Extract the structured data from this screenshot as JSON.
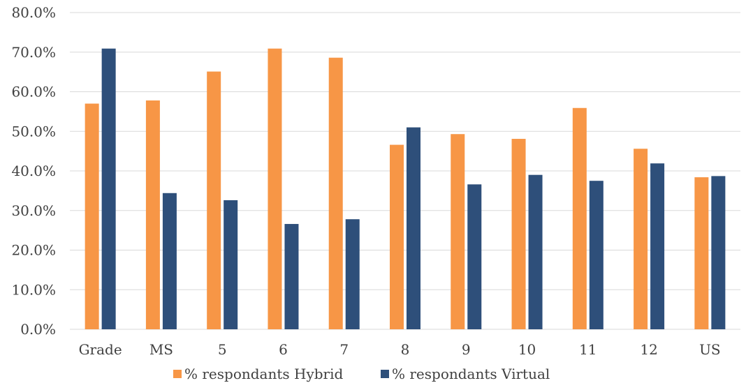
{
  "chart_data": {
    "type": "bar",
    "title": "",
    "xlabel": "",
    "ylabel": "",
    "ylim": [
      0,
      80
    ],
    "y_ticks": [
      "0.0%",
      "10.0%",
      "20.0%",
      "30.0%",
      "40.0%",
      "50.0%",
      "60.0%",
      "70.0%",
      "80.0%"
    ],
    "y_tick_values": [
      0,
      10,
      20,
      30,
      40,
      50,
      60,
      70,
      80
    ],
    "grid": true,
    "legend_position": "bottom",
    "categories": [
      "Grade",
      "MS",
      "5",
      "6",
      "7",
      "8",
      "9",
      "10",
      "11",
      "12",
      "US"
    ],
    "series": [
      {
        "name": "% respondants Hybrid",
        "color": "#F79646",
        "values": [
          57.0,
          57.8,
          65.1,
          70.9,
          68.6,
          46.6,
          49.3,
          48.1,
          55.9,
          45.6,
          38.4
        ]
      },
      {
        "name": "% respondants Virtual",
        "color": "#2E4F7A",
        "values": [
          70.9,
          34.4,
          32.6,
          26.6,
          27.8,
          51.0,
          36.6,
          39.0,
          37.5,
          41.9,
          38.7
        ]
      }
    ]
  }
}
